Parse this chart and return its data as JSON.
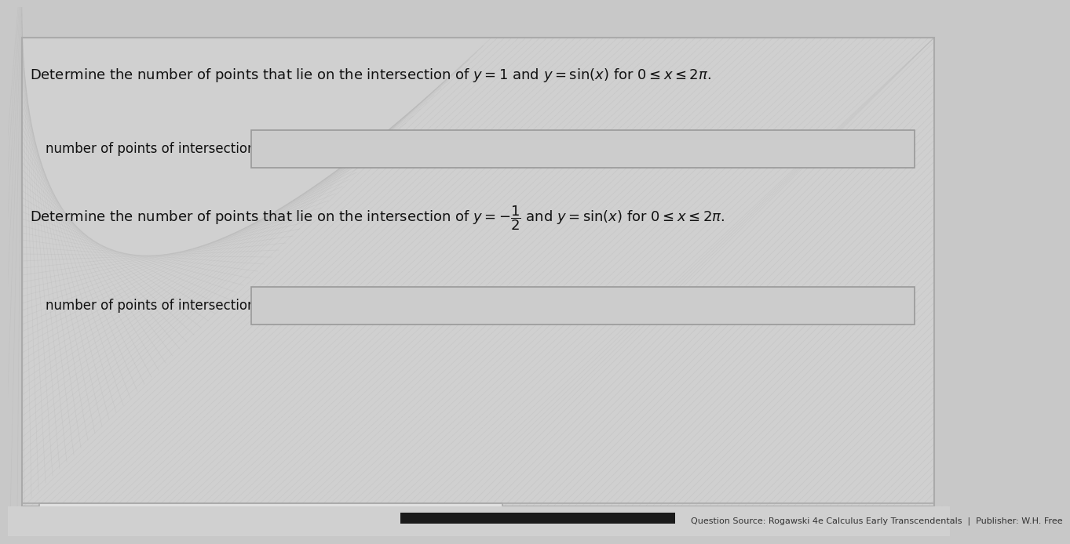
{
  "bg_color": "#c8c8c8",
  "main_panel_color": "#d8d8d8",
  "panel_border_color": "#aaaaaa",
  "content_bg": "#d0d0d0",
  "question1_text": "Determine the number of points that lie on the intersection of $y = 1$ and $y = \\sin(x)$ for $0 \\leq x \\leq 2\\pi$.",
  "label1_text": "number of points of intersection:",
  "question2_text": "Determine the number of points that lie on the intersection of $y = -\\dfrac{1}{2}$ and $y = \\sin(x)$ for $0 \\leq x \\leq 2\\pi$.",
  "label2_text": "number of points of intersection:",
  "footer_text": "Question Source: Rogawski 4e Calculus Early Transcendentals  |  Publisher: W.H. Free",
  "footer_bg": "#111111",
  "footer_bar_color": "#1a1a1a",
  "input_box_color": "#cccccc",
  "input_box_border": "#999999",
  "text_color": "#111111",
  "font_size": 13,
  "label_font_size": 12,
  "top_box_color": "#e0e0e0",
  "top_box_border": "#aaaaaa"
}
